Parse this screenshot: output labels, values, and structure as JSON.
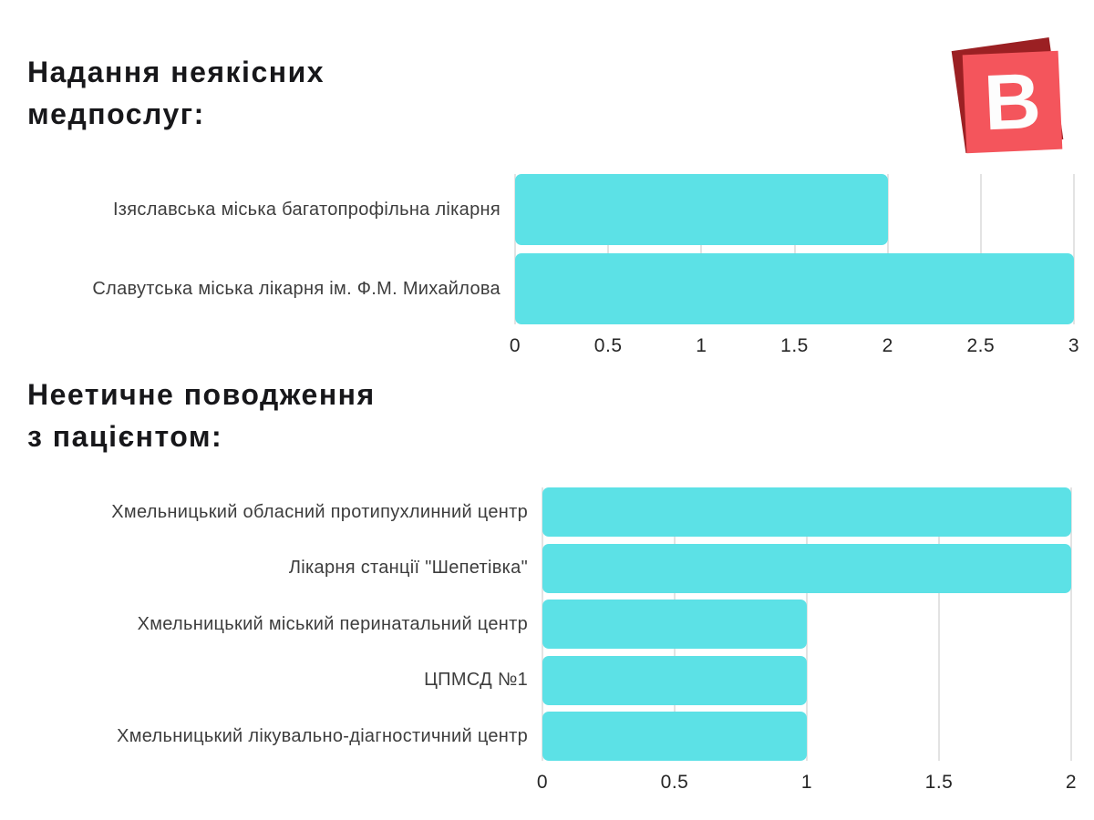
{
  "page": {
    "background": "#ffffff"
  },
  "logo": {
    "letter": "B",
    "front_color": "#f4555c",
    "back_color": "#9b2023"
  },
  "chart_data": [
    {
      "type": "bar",
      "orientation": "horizontal",
      "title": "Надання неякісних\nмедпослуг:",
      "categories": [
        "Ізяславська міська багатопрофільна лікарня",
        "Славутська міська лікарня ім. Ф.М. Михайлова"
      ],
      "values": [
        2,
        3
      ],
      "xlim": [
        0,
        3
      ],
      "ticks": [
        0,
        0.5,
        1,
        1.5,
        2,
        2.5,
        3
      ],
      "tick_labels": [
        "0",
        "0.5",
        "1",
        "1.5",
        "2",
        "2.5",
        "3"
      ],
      "bar_color": "#5ce1e6",
      "grid": true,
      "legend": false
    },
    {
      "type": "bar",
      "orientation": "horizontal",
      "title": "Неетичне поводження\nз пацієнтом:",
      "categories": [
        "Хмельницький обласний протипухлинний центр",
        "Лікарня станції \"Шепетівка\"",
        "Хмельницький міський перинатальний центр",
        "ЦПМСД №1",
        "Хмельницький лікувально-діагностичний центр"
      ],
      "values": [
        2,
        2,
        1,
        1,
        1
      ],
      "xlim": [
        0,
        2
      ],
      "ticks": [
        0,
        0.5,
        1,
        1.5,
        2
      ],
      "tick_labels": [
        "0",
        "0.5",
        "1",
        "1.5",
        "2"
      ],
      "bar_color": "#5ce1e6",
      "grid": true,
      "legend": false
    }
  ]
}
